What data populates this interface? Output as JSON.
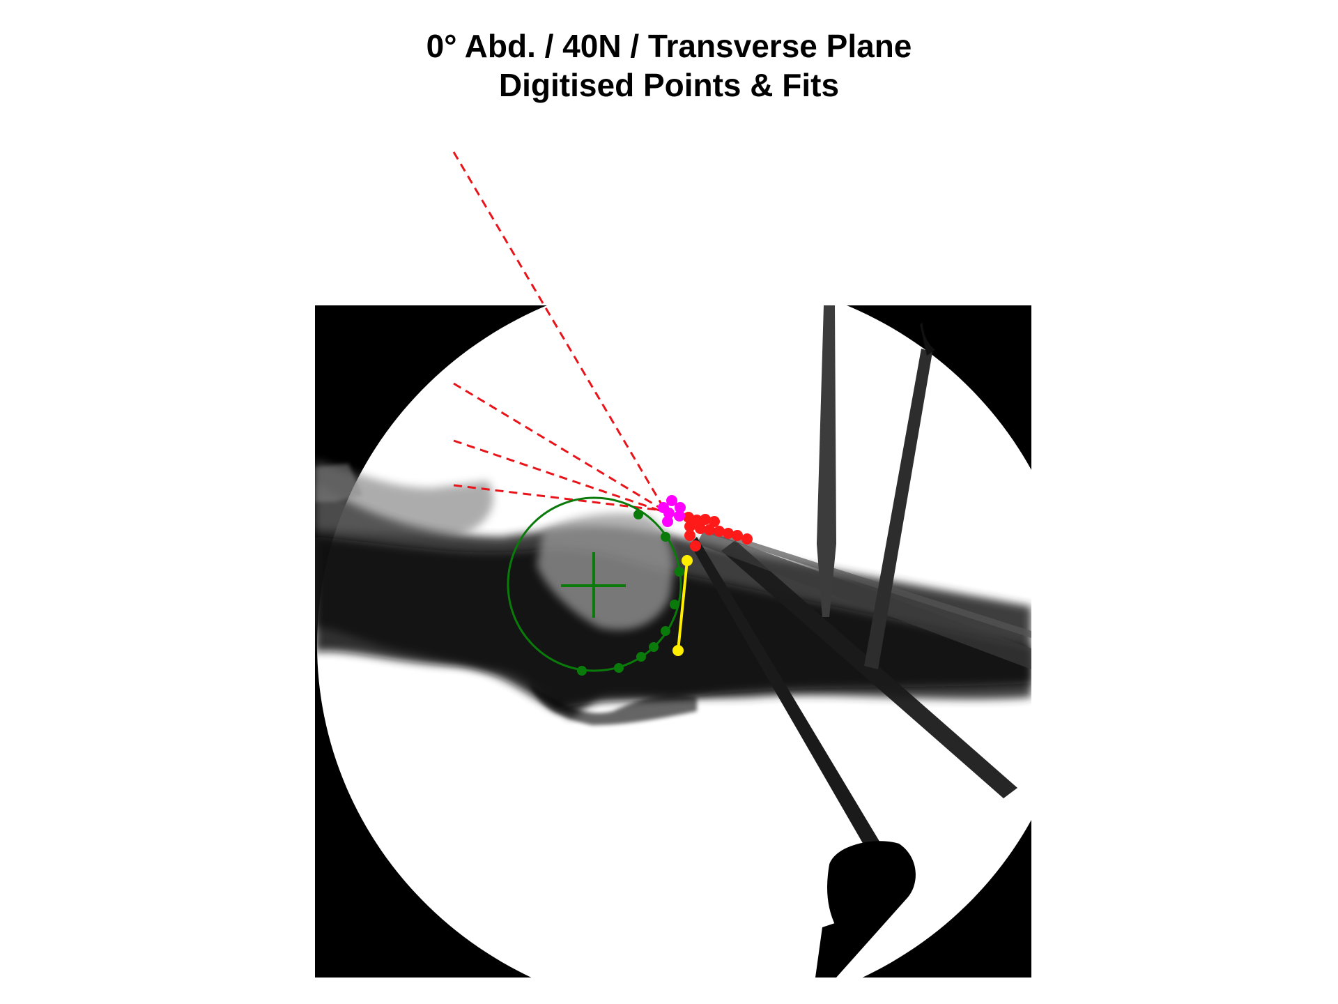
{
  "title": {
    "line1": "0° Abd. / 40N / Transverse Plane",
    "line2": "Digitised Points & Fits"
  },
  "colors": {
    "circle_fit": "#0a7a0a",
    "lines": "#e8141a",
    "insertion_points": "#ff1a1a",
    "magenta_points": "#ff00ff",
    "yellow_segment": "#ffee00",
    "image_background": "#000000"
  },
  "overlay": {
    "elements": [
      "fluoroscopy-image",
      "circle-fit",
      "circle-center-cross",
      "green-digitised-points",
      "red-dashed-lines-of-action",
      "red-digitised-points",
      "magenta-digitised-points",
      "yellow-segment"
    ]
  }
}
